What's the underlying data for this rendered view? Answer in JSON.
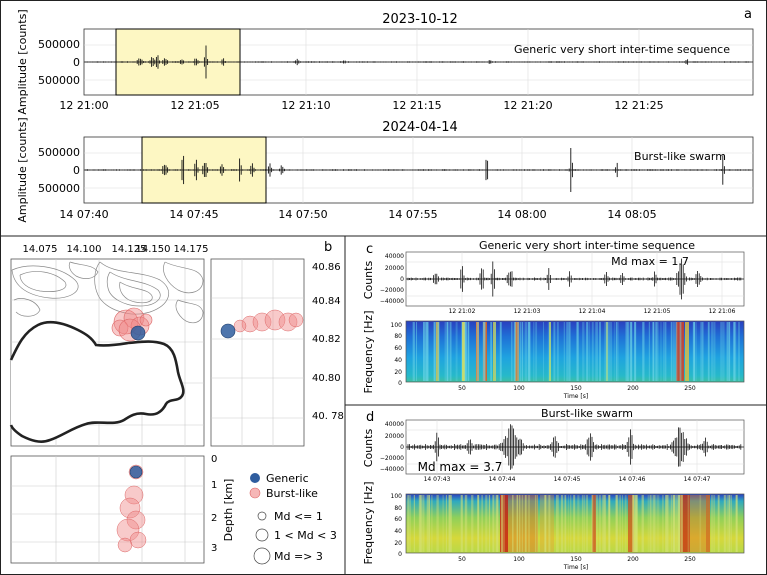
{
  "panel_letters": {
    "a": "a",
    "b": "b",
    "c": "c",
    "d": "d"
  },
  "panel_a": {
    "top": {
      "title": "2023-10-12",
      "label": "Generic very short inter-time sequence",
      "ylabel": "Amplitude [counts]",
      "yticks": [
        "500000",
        "0",
        "500000"
      ],
      "xticks": [
        "12 21:00",
        "12 21:05",
        "12 21:10",
        "12 21:15",
        "12 21:20",
        "12 21:25"
      ]
    },
    "bottom": {
      "title": "2024-04-14",
      "label": "Burst-like swarm",
      "ylabel": "Amplitude [counts]",
      "yticks": [
        "500000",
        "0",
        "500000"
      ],
      "xticks": [
        "14 07:40",
        "14 07:45",
        "14 07:50",
        "14 07:55",
        "14 08:00",
        "14 08:05"
      ]
    }
  },
  "panel_b": {
    "map_xticks": [
      "14.075",
      "14.100",
      "14.125",
      "14.150",
      "14.175"
    ],
    "lat_ticks": [
      "40.86",
      "40.84",
      "40.82",
      "40.80",
      "40. 78"
    ],
    "depth_ticks": [
      "0",
      "1",
      "2",
      "3"
    ],
    "depth_label": "Depth [km]",
    "legend": {
      "generic": "Generic",
      "burst": "Burst-like",
      "md1": "Md <= 1",
      "md2": "1 < Md < 3",
      "md3": "Md => 3"
    }
  },
  "panel_c": {
    "title": "Generic very short inter-time sequence",
    "md": "Md max = 1.7",
    "counts_label": "Counts",
    "freq_label": "Frequency [Hz]",
    "yticks": [
      "40000",
      "20000",
      "0",
      "−20000",
      "−40000"
    ],
    "time_ticks": [
      "12 21:02",
      "12 21:03",
      "12 21:04",
      "12 21:05",
      "12 21:06"
    ],
    "freq_ticks": [
      "100",
      "80",
      "60",
      "40",
      "20",
      "0"
    ],
    "sec_ticks": [
      "50",
      "100",
      "150",
      "200",
      "250"
    ],
    "sec_label": "Time [s]"
  },
  "panel_d": {
    "title": "Burst-like swarm",
    "md": "Md max = 3.7",
    "counts_label": "Counts",
    "freq_label": "Frequency [Hz]",
    "yticks": [
      "40000",
      "20000",
      "0",
      "−20000",
      "−40000"
    ],
    "time_ticks": [
      "14 07:43",
      "14 07:44",
      "14 07:45",
      "14 07:46",
      "14 07:47"
    ],
    "freq_ticks": [
      "100",
      "80",
      "60",
      "40",
      "20",
      "0"
    ],
    "sec_ticks": [
      "50",
      "100",
      "150",
      "200",
      "250"
    ],
    "sec_label": "Time [s]"
  },
  "colors": {
    "highlight": "#fdf7c3",
    "generic": "#2f5d9e",
    "burst": "#f08a8a"
  }
}
